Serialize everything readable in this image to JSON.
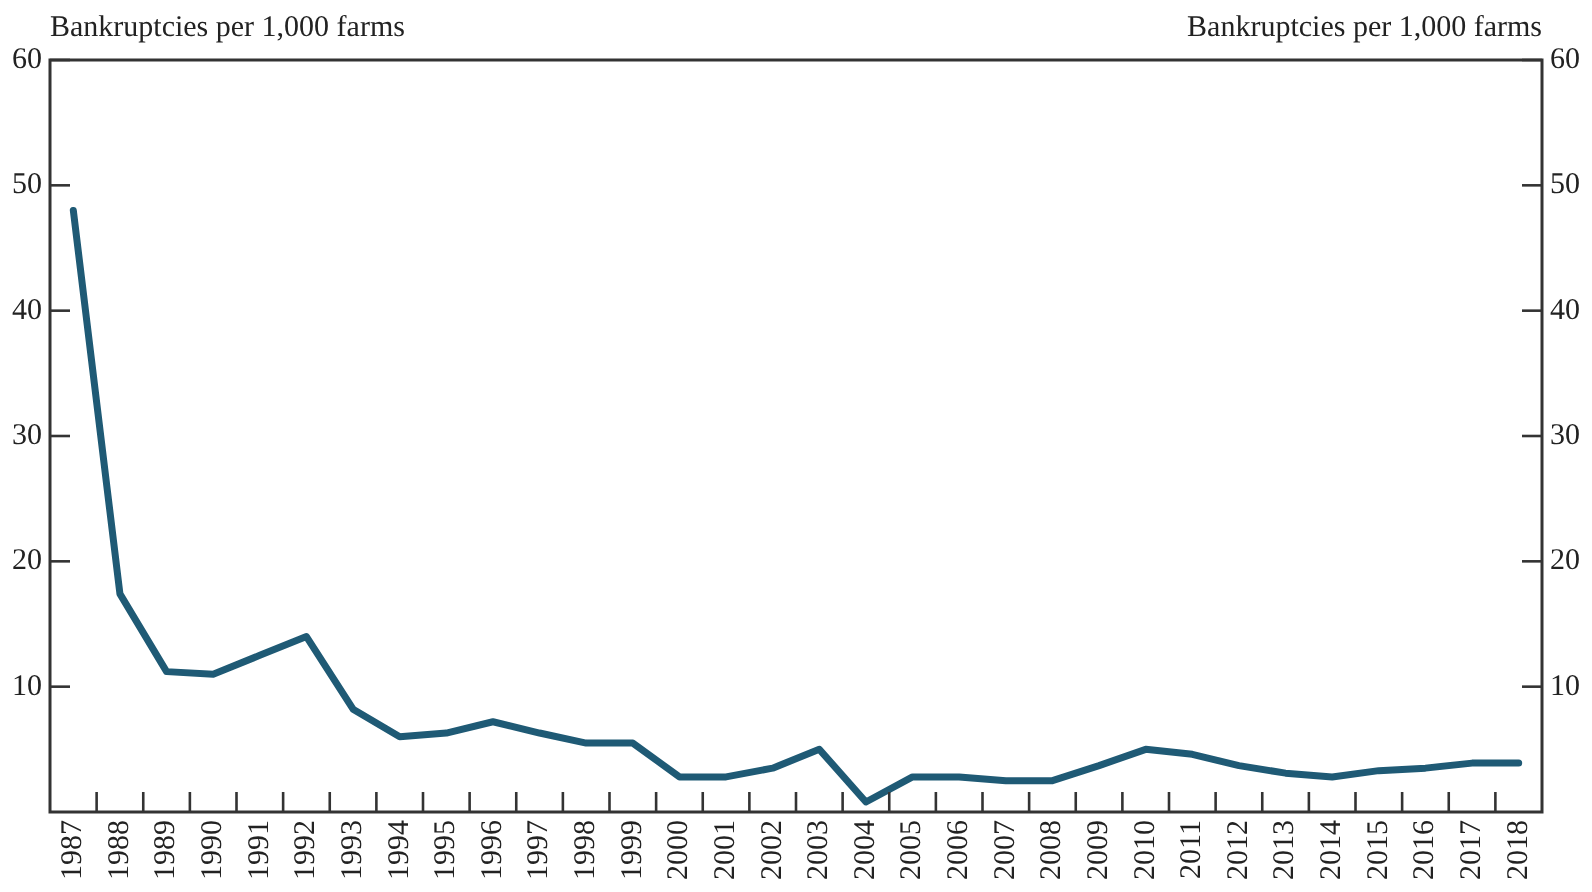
{
  "chart_data": {
    "type": "line",
    "ylabel": "Bankruptcies per 1,000 farms",
    "y2label": "Bankruptcies per 1,000 farms",
    "categories": [
      "1987",
      "1988",
      "1989",
      "1990",
      "1991",
      "1992",
      "1993",
      "1994",
      "1995",
      "1996",
      "1997",
      "1998",
      "1999",
      "2000",
      "2001",
      "2002",
      "2003",
      "2004",
      "2005",
      "2006",
      "2007",
      "2008",
      "2009",
      "2010",
      "2011",
      "2012",
      "2013",
      "2014",
      "2015",
      "2016",
      "2017",
      "2018"
    ],
    "series": [
      {
        "color": "#1f5a75",
        "values": [
          48.0,
          17.4,
          11.2,
          11.0,
          12.5,
          14.0,
          8.2,
          6.0,
          6.3,
          7.2,
          6.3,
          5.5,
          5.5,
          2.8,
          2.8,
          3.5,
          5.0,
          0.8,
          2.8,
          2.8,
          2.5,
          2.5,
          3.7,
          5.0,
          4.6,
          3.7,
          3.1,
          2.8,
          3.3,
          3.5,
          3.9,
          3.9
        ]
      }
    ],
    "ylim": [
      0,
      60
    ],
    "yticks": [
      10,
      20,
      30,
      40,
      50,
      60
    ],
    "y2lim": [
      0,
      60
    ],
    "y2ticks": [
      10,
      20,
      30,
      40,
      50,
      60
    ],
    "grid": false,
    "legend": false,
    "marker": "none",
    "line_style": "solid"
  }
}
